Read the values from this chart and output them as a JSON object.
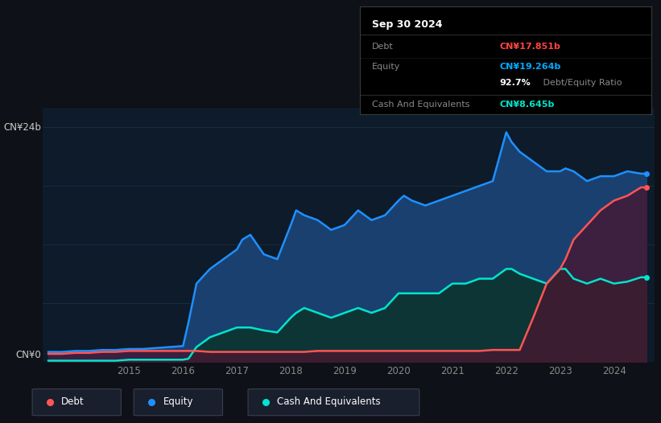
{
  "bg_color": "#0e1117",
  "plot_bg_color": "#0d1b2a",
  "grid_color": "#1a3040",
  "title_box": {
    "date": "Sep 30 2024",
    "debt_label": "Debt",
    "debt_value": "CN¥17.851b",
    "equity_label": "Equity",
    "equity_value": "CN¥19.264b",
    "ratio_value": "92.7%",
    "ratio_label": " Debt/Equity Ratio",
    "cash_label": "Cash And Equivalents",
    "cash_value": "CN¥8.645b",
    "debt_color": "#ff4444",
    "equity_color": "#00aaff",
    "cash_color": "#00e5cc"
  },
  "y_label_top": "CN¥24b",
  "y_label_bottom": "CN¥0",
  "x_ticks": [
    2015,
    2016,
    2017,
    2018,
    2019,
    2020,
    2021,
    2022,
    2023,
    2024
  ],
  "equity_line_color": "#1e90ff",
  "equity_fill_color": "#1a4070",
  "debt_line_color": "#ff5555",
  "debt_fill_color": "#4a1530",
  "cash_line_color": "#00e5cc",
  "cash_fill_color": "#0e3535",
  "legend_items": [
    {
      "label": "Debt",
      "color": "#ff5555"
    },
    {
      "label": "Equity",
      "color": "#1e90ff"
    },
    {
      "label": "Cash And Equivalents",
      "color": "#00e5cc"
    }
  ],
  "years": [
    2013.5,
    2013.75,
    2014.0,
    2014.25,
    2014.5,
    2014.75,
    2015.0,
    2015.25,
    2015.5,
    2015.75,
    2016.0,
    2016.1,
    2016.25,
    2016.5,
    2016.75,
    2017.0,
    2017.1,
    2017.25,
    2017.5,
    2017.75,
    2018.0,
    2018.1,
    2018.25,
    2018.5,
    2018.75,
    2019.0,
    2019.25,
    2019.5,
    2019.75,
    2020.0,
    2020.1,
    2020.25,
    2020.5,
    2020.75,
    2021.0,
    2021.25,
    2021.5,
    2021.75,
    2022.0,
    2022.1,
    2022.25,
    2022.5,
    2022.75,
    2023.0,
    2023.1,
    2023.25,
    2023.5,
    2023.75,
    2024.0,
    2024.25,
    2024.5,
    2024.6
  ],
  "equity": [
    1.0,
    1.0,
    1.1,
    1.1,
    1.2,
    1.2,
    1.3,
    1.3,
    1.4,
    1.5,
    1.6,
    4.0,
    8.0,
    9.5,
    10.5,
    11.5,
    12.5,
    13.0,
    11.0,
    10.5,
    14.0,
    15.5,
    15.0,
    14.5,
    13.5,
    14.0,
    15.5,
    14.5,
    15.0,
    16.5,
    17.0,
    16.5,
    16.0,
    16.5,
    17.0,
    17.5,
    18.0,
    18.5,
    23.5,
    22.5,
    21.5,
    20.5,
    19.5,
    19.5,
    19.8,
    19.5,
    18.5,
    19.0,
    19.0,
    19.5,
    19.264,
    19.264
  ],
  "debt": [
    0.8,
    0.8,
    0.9,
    0.9,
    1.0,
    1.0,
    1.1,
    1.1,
    1.1,
    1.1,
    1.1,
    1.1,
    1.1,
    1.0,
    1.0,
    1.0,
    1.0,
    1.0,
    1.0,
    1.0,
    1.0,
    1.0,
    1.0,
    1.1,
    1.1,
    1.1,
    1.1,
    1.1,
    1.1,
    1.1,
    1.1,
    1.1,
    1.1,
    1.1,
    1.1,
    1.1,
    1.1,
    1.2,
    1.2,
    1.2,
    1.2,
    4.5,
    8.0,
    9.5,
    10.5,
    12.5,
    14.0,
    15.5,
    16.5,
    17.0,
    17.851,
    17.851
  ],
  "cash": [
    0.1,
    0.1,
    0.1,
    0.1,
    0.1,
    0.1,
    0.2,
    0.2,
    0.2,
    0.2,
    0.2,
    0.3,
    1.5,
    2.5,
    3.0,
    3.5,
    3.5,
    3.5,
    3.2,
    3.0,
    4.5,
    5.0,
    5.5,
    5.0,
    4.5,
    5.0,
    5.5,
    5.0,
    5.5,
    7.0,
    7.0,
    7.0,
    7.0,
    7.0,
    8.0,
    8.0,
    8.5,
    8.5,
    9.5,
    9.5,
    9.0,
    8.5,
    8.0,
    9.5,
    9.5,
    8.5,
    8.0,
    8.5,
    8.0,
    8.2,
    8.645,
    8.645
  ]
}
